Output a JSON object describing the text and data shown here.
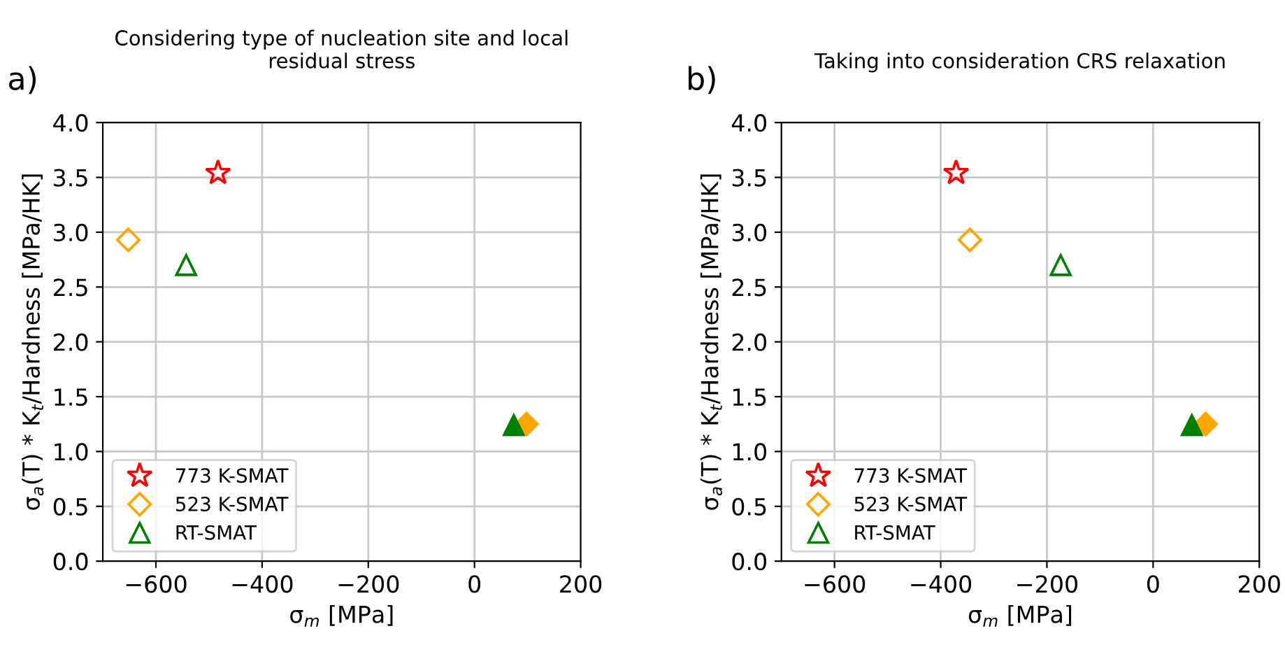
{
  "chart_data": [
    {
      "type": "scatter",
      "title": "Considering type of nucleation site and local\nresidual stress",
      "xlabel": "σ$_{m}$ [MPa]",
      "ylabel": "σ$_{a}$(T) * K$_{t}$/Hardness [MPa/HK]",
      "annotations": [
        "a)"
      ],
      "xlim": [
        -700,
        200
      ],
      "xticks": [
        {
          "value": -600,
          "label": "−600"
        },
        {
          "value": -400,
          "label": "−400"
        },
        {
          "value": -200,
          "label": "−200"
        },
        0,
        200
      ],
      "ylim": [
        0,
        4
      ],
      "yticks": [
        {
          "value": 0,
          "label": "0.0"
        },
        {
          "value": 0.5,
          "label": "0.5"
        },
        {
          "value": 1,
          "label": "1.0"
        },
        {
          "value": 1.5,
          "label": "1.5"
        },
        {
          "value": 2,
          "label": "2.0"
        },
        {
          "value": 2.5,
          "label": "2.5"
        },
        {
          "value": 3,
          "label": "3.0"
        },
        {
          "value": 3.5,
          "label": "3.5"
        },
        {
          "value": 4,
          "label": "4.0"
        }
      ],
      "grid": true,
      "legend": "bottom left",
      "series": [
        {
          "name": "773 K-SMAT",
          "color": "#ff0000",
          "marker": "star",
          "x": [
            -483
          ],
          "values": [
            3.54
          ],
          "colors": [
            null
          ]
        },
        {
          "name": "523 K-SMAT",
          "color": "#ffa500",
          "marker": "diamond",
          "x": [
            -652,
            98
          ],
          "values": [
            2.93,
            1.25
          ],
          "colors": [
            null,
            "#ffa500"
          ]
        },
        {
          "name": "RT-SMAT",
          "color": "#008000",
          "marker": "triangle",
          "x": [
            -543,
            74
          ],
          "values": [
            2.7,
            1.24
          ],
          "colors": [
            null,
            "#008000"
          ]
        }
      ]
    },
    {
      "type": "scatter",
      "title": "Taking into consideration CRS relaxation",
      "xlabel": "σ$_{m}$ [MPa]",
      "ylabel": "σ$_{a}$(T) * K$_{t}$/Hardness [MPa/HK]",
      "annotations": [
        "b)"
      ],
      "xlim": [
        -700,
        200
      ],
      "xticks": [
        {
          "value": -600,
          "label": "−600"
        },
        {
          "value": -400,
          "label": "−400"
        },
        {
          "value": -200,
          "label": "−200"
        },
        0,
        200
      ],
      "ylim": [
        0,
        4
      ],
      "yticks": [
        {
          "value": 0,
          "label": "0.0"
        },
        {
          "value": 0.5,
          "label": "0.5"
        },
        {
          "value": 1,
          "label": "1.0"
        },
        {
          "value": 1.5,
          "label": "1.5"
        },
        {
          "value": 2,
          "label": "2.0"
        },
        {
          "value": 2.5,
          "label": "2.5"
        },
        {
          "value": 3,
          "label": "3.0"
        },
        {
          "value": 3.5,
          "label": "3.5"
        },
        {
          "value": 4,
          "label": "4.0"
        }
      ],
      "grid": true,
      "legend": "bottom left",
      "series": [
        {
          "name": "773 K-SMAT",
          "color": "#ff0000",
          "marker": "star",
          "x": [
            -371
          ],
          "values": [
            3.54
          ],
          "colors": [
            null
          ]
        },
        {
          "name": "523 K-SMAT",
          "color": "#ffa500",
          "marker": "diamond",
          "x": [
            -345,
            99
          ],
          "values": [
            2.93,
            1.25
          ],
          "colors": [
            null,
            "#ffa500"
          ]
        },
        {
          "name": "RT-SMAT",
          "color": "#008000",
          "marker": "triangle",
          "x": [
            -174,
            73
          ],
          "values": [
            2.7,
            1.24
          ],
          "colors": [
            null,
            "#008000"
          ]
        }
      ]
    }
  ]
}
